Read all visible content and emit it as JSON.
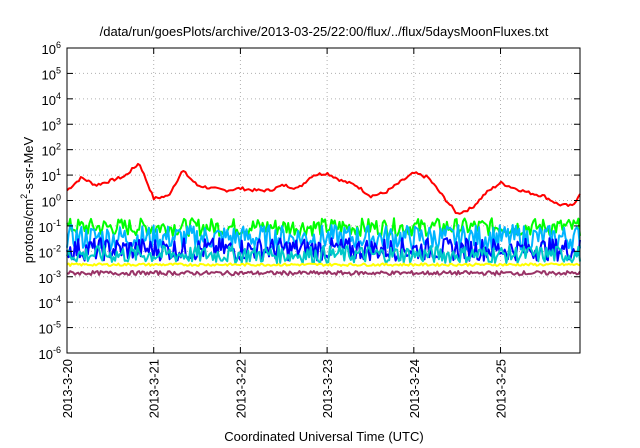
{
  "chart_data": {
    "type": "line",
    "title": "/data/run/goesPlots/archive/2013-03-25/22:00/flux/../flux/5daysMoonFluxes.txt",
    "xlabel": "Coordinated Universal Time (UTC)",
    "ylabel": "protons/cm²-s-sr-MeV",
    "ylabel_parts": {
      "main": "protons/cm",
      "sup": "2",
      "rest": "-s-sr-MeV"
    },
    "yscale": "log",
    "ylim": [
      1e-06,
      1000000
    ],
    "ytick_base": "10",
    "ytick_exponents": [
      "-6",
      "-5",
      "-4",
      "-3",
      "-2",
      "-1",
      "0",
      "1",
      "2",
      "3",
      "4",
      "5",
      "6"
    ],
    "xlim": [
      "2013-03-20 00:00",
      "2013-03-25 22:00"
    ],
    "xticks": [
      "2013-3-20",
      "2013-3-21",
      "2013-3-22",
      "2013-3-23",
      "2013-3-24",
      "2013-3-25"
    ],
    "grid": true,
    "legend": "none",
    "series": [
      {
        "color": "#ff0000",
        "x": [
          "2013-03-20 00:00",
          "2013-03-20 04:00",
          "2013-03-20 08:00",
          "2013-03-20 12:00",
          "2013-03-20 16:00",
          "2013-03-20 20:00",
          "2013-03-21 00:00",
          "2013-03-21 04:00",
          "2013-03-21 08:00",
          "2013-03-21 12:00",
          "2013-03-21 16:00",
          "2013-03-21 20:00",
          "2013-03-22 00:00",
          "2013-03-22 04:00",
          "2013-03-22 08:00",
          "2013-03-22 12:00",
          "2013-03-22 16:00",
          "2013-03-22 20:00",
          "2013-03-23 00:00",
          "2013-03-23 04:00",
          "2013-03-23 08:00",
          "2013-03-23 12:00",
          "2013-03-23 16:00",
          "2013-03-23 20:00",
          "2013-03-24 00:00",
          "2013-03-24 04:00",
          "2013-03-24 08:00",
          "2013-03-24 12:00",
          "2013-03-24 16:00",
          "2013-03-24 20:00",
          "2013-03-25 00:00",
          "2013-03-25 04:00",
          "2013-03-25 08:00",
          "2013-03-25 12:00",
          "2013-03-25 16:00",
          "2013-03-25 20:00",
          "2013-03-25 22:00"
        ],
        "y": [
          2.5,
          8,
          4,
          6,
          9,
          30,
          1.2,
          1.5,
          15,
          4,
          3,
          2.5,
          3,
          2.5,
          2.5,
          4,
          3,
          10,
          12,
          6,
          4,
          1.5,
          2,
          5,
          12,
          8,
          1.5,
          0.3,
          0.5,
          2,
          5,
          3,
          2,
          1.5,
          0.7,
          0.6,
          2
        ]
      },
      {
        "color": "#00ff00",
        "base": 0.09,
        "jitter": 0.35
      },
      {
        "color": "#00b4ff",
        "base": 0.035,
        "jitter": 0.5
      },
      {
        "color": "#0000ff",
        "base": 0.012,
        "jitter": 0.45
      },
      {
        "color": "#00c8c8",
        "base": 0.0075,
        "jitter": 0.35
      },
      {
        "color": "#ffff00",
        "base": 0.003,
        "jitter": 0.05
      },
      {
        "color": "#993366",
        "base": 0.0014,
        "jitter": 0.08
      }
    ]
  }
}
